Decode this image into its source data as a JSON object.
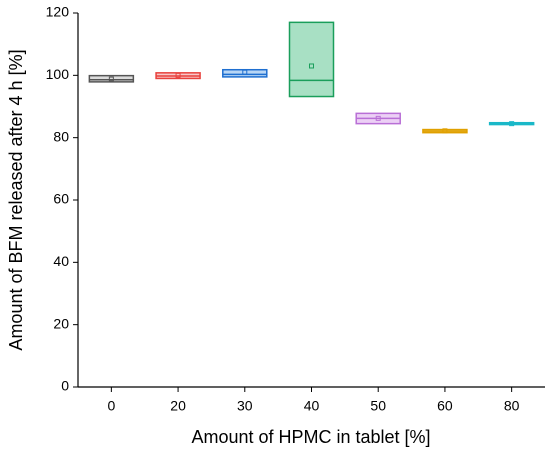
{
  "chart_data": {
    "type": "box",
    "x_label": "Amount of HPMC in tablet [%]",
    "y_label": "Amount of BFM released after 4 h [%]",
    "categories": [
      "0",
      "20",
      "30",
      "40",
      "50",
      "60",
      "80"
    ],
    "q1": [
      97.9,
      99.0,
      99.5,
      93.2,
      84.5,
      81.6,
      84.2
    ],
    "median": [
      98.6,
      99.8,
      100.3,
      98.4,
      86.2,
      82.1,
      84.5
    ],
    "q3": [
      99.9,
      100.8,
      101.8,
      117.0,
      87.8,
      82.6,
      84.8
    ],
    "mean": [
      98.8,
      100.0,
      101.0,
      103.0,
      86.2,
      82.2,
      84.5
    ],
    "colors": [
      "#555555",
      "#e8413c",
      "#1f6fd0",
      "#1a9e5b",
      "#b96fd6",
      "#e0a000",
      "#1ab8c8"
    ],
    "fills": [
      "#dcdcdc",
      "#f8c8c8",
      "#b8d6f5",
      "#a8e0c4",
      "#ecd0f5",
      "#f5d98a",
      "#b0eef4"
    ],
    "ylim": [
      0,
      120
    ],
    "yticks": [
      0,
      20,
      40,
      60,
      80,
      100,
      120
    ]
  }
}
